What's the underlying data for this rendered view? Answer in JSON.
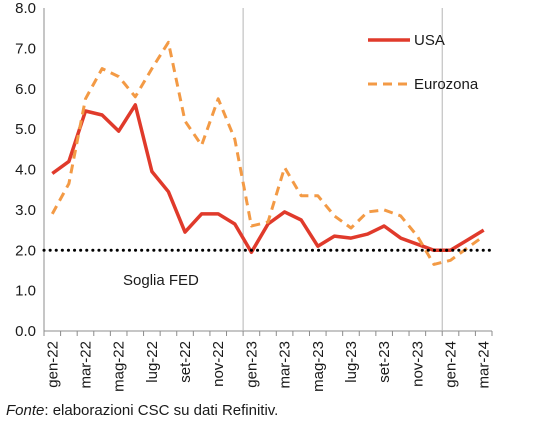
{
  "chart_data": {
    "type": "line",
    "x": [
      "gen-22",
      "feb-22",
      "mar-22",
      "apr-22",
      "mag-22",
      "giu-22",
      "lug-22",
      "ago-22",
      "set-22",
      "ott-22",
      "nov-22",
      "dic-22",
      "gen-23",
      "feb-23",
      "mar-23",
      "apr-23",
      "mag-23",
      "giu-23",
      "lug-23",
      "ago-23",
      "set-23",
      "ott-23",
      "nov-23",
      "dic-23",
      "gen-24",
      "feb-24",
      "mar-24"
    ],
    "x_tick_labels": [
      "gen-22",
      "mar-22",
      "mag-22",
      "lug-22",
      "set-22",
      "nov-22",
      "gen-23",
      "mar-23",
      "mag-23",
      "lug-23",
      "set-23",
      "nov-23",
      "gen-24",
      "mar-24"
    ],
    "ylim": [
      0,
      8
    ],
    "y_ticks": [
      "0.0",
      "1.0",
      "2.0",
      "3.0",
      "4.0",
      "5.0",
      "6.0",
      "7.0",
      "8.0"
    ],
    "series": [
      {
        "name": "USA",
        "color": "#e03a2b",
        "style": "solid",
        "values": [
          3.9,
          4.2,
          5.45,
          5.35,
          4.95,
          5.6,
          3.95,
          3.45,
          2.45,
          2.9,
          2.9,
          2.65,
          1.95,
          2.65,
          2.95,
          2.75,
          2.1,
          2.35,
          2.3,
          2.4,
          2.6,
          2.3,
          2.15,
          2.0,
          2.0,
          2.25,
          2.5
        ]
      },
      {
        "name": "Eurozona",
        "color": "#f39a45",
        "style": "dashed",
        "values": [
          2.9,
          3.65,
          5.75,
          6.5,
          6.3,
          5.8,
          6.5,
          7.15,
          5.2,
          4.6,
          5.75,
          4.75,
          2.6,
          2.7,
          4.05,
          3.35,
          3.35,
          2.85,
          2.55,
          2.95,
          3.0,
          2.85,
          2.35,
          1.65,
          1.75,
          2.05,
          2.35
        ]
      }
    ],
    "reference_line": {
      "value": 2.0,
      "style": "dotted",
      "color": "#000000",
      "label": "Soglia FED"
    },
    "vertical_separators_at": [
      "gen-23",
      "gen-24"
    ],
    "legend": {
      "position": "top-right",
      "entries": [
        "USA",
        "Eurozona"
      ]
    }
  },
  "source": {
    "label": "Fonte",
    "text": ": elaborazioni CSC su dati Refinitiv."
  }
}
